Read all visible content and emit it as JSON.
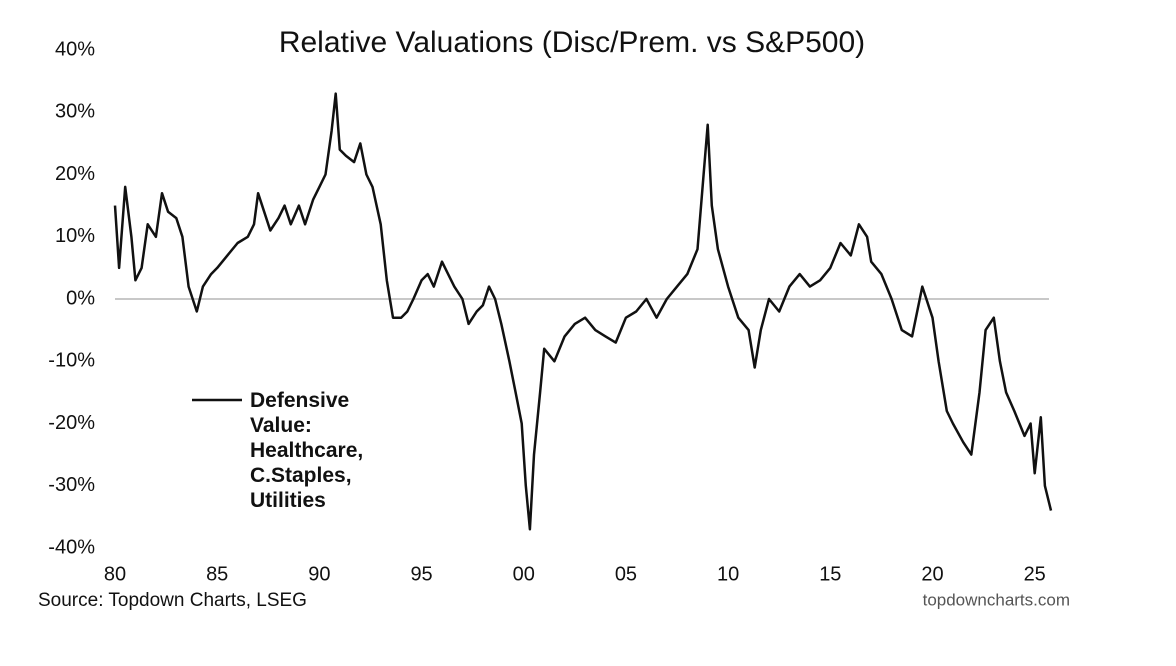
{
  "chart_data": {
    "type": "line",
    "title": "Relative Valuations (Disc/Prem. vs S&P500)",
    "source": "Source: Topdown Charts, LSEG",
    "watermark": "topdowncharts.com",
    "xlim": [
      1980,
      2025.7
    ],
    "ylim": [
      -40,
      40
    ],
    "xticks": [
      {
        "value": 1980,
        "label": "80"
      },
      {
        "value": 1985,
        "label": "85"
      },
      {
        "value": 1990,
        "label": "90"
      },
      {
        "value": 1995,
        "label": "95"
      },
      {
        "value": 2000,
        "label": "00"
      },
      {
        "value": 2005,
        "label": "05"
      },
      {
        "value": 2010,
        "label": "10"
      },
      {
        "value": 2015,
        "label": "15"
      },
      {
        "value": 2020,
        "label": "20"
      },
      {
        "value": 2025,
        "label": "25"
      }
    ],
    "yticks": [
      {
        "value": 40,
        "label": "40%"
      },
      {
        "value": 30,
        "label": "30%"
      },
      {
        "value": 20,
        "label": "20%"
      },
      {
        "value": 10,
        "label": "10%"
      },
      {
        "value": 0,
        "label": "0%"
      },
      {
        "value": -10,
        "label": "-10%"
      },
      {
        "value": -20,
        "label": "-20%"
      },
      {
        "value": -30,
        "label": "-30%"
      },
      {
        "value": -40,
        "label": "-40%"
      }
    ],
    "zero_line": true,
    "x": [
      1980.0,
      1980.2,
      1980.5,
      1980.8,
      1981.0,
      1981.3,
      1981.6,
      1982.0,
      1982.3,
      1982.6,
      1983.0,
      1983.3,
      1983.6,
      1984.0,
      1984.3,
      1984.7,
      1985.0,
      1985.5,
      1986.0,
      1986.5,
      1986.8,
      1987.0,
      1987.3,
      1987.6,
      1988.0,
      1988.3,
      1988.6,
      1989.0,
      1989.3,
      1989.7,
      1990.0,
      1990.3,
      1990.6,
      1990.8,
      1991.0,
      1991.3,
      1991.7,
      1992.0,
      1992.3,
      1992.6,
      1993.0,
      1993.3,
      1993.6,
      1994.0,
      1994.3,
      1994.6,
      1995.0,
      1995.3,
      1995.6,
      1996.0,
      1996.3,
      1996.6,
      1997.0,
      1997.3,
      1997.7,
      1998.0,
      1998.3,
      1998.6,
      1998.9,
      1999.3,
      1999.6,
      1999.9,
      2000.1,
      2000.3,
      2000.5,
      2000.8,
      2001.0,
      2001.5,
      2002.0,
      2002.5,
      2003.0,
      2003.5,
      2004.0,
      2004.5,
      2005.0,
      2005.5,
      2006.0,
      2006.5,
      2007.0,
      2007.5,
      2008.0,
      2008.5,
      2008.8,
      2009.0,
      2009.2,
      2009.5,
      2010.0,
      2010.5,
      2011.0,
      2011.3,
      2011.6,
      2012.0,
      2012.5,
      2013.0,
      2013.5,
      2014.0,
      2014.5,
      2015.0,
      2015.5,
      2016.0,
      2016.4,
      2016.8,
      2017.0,
      2017.5,
      2018.0,
      2018.5,
      2019.0,
      2019.5,
      2020.0,
      2020.3,
      2020.7,
      2021.0,
      2021.5,
      2021.9,
      2022.3,
      2022.6,
      2023.0,
      2023.3,
      2023.6,
      2024.0,
      2024.5,
      2024.8,
      2025.0,
      2025.3,
      2025.5,
      2025.8
    ],
    "series": [
      {
        "name": "Defensive Value: Healthcare, C.Staples, Utilities",
        "color": "#111111",
        "values": [
          15,
          5,
          18,
          10,
          3,
          5,
          12,
          10,
          17,
          14,
          13,
          10,
          2,
          -2,
          2,
          4,
          5,
          7,
          9,
          10,
          12,
          17,
          14,
          11,
          13,
          15,
          12,
          15,
          12,
          16,
          18,
          20,
          27,
          33,
          24,
          23,
          22,
          25,
          20,
          18,
          12,
          3,
          -3,
          -3,
          -2,
          0,
          3,
          4,
          2,
          6,
          4,
          2,
          0,
          -4,
          -2,
          -1,
          2,
          0,
          -4,
          -10,
          -15,
          -20,
          -30,
          -37,
          -25,
          -15,
          -8,
          -10,
          -6,
          -4,
          -3,
          -5,
          -6,
          -7,
          -3,
          -2,
          0,
          -3,
          0,
          2,
          4,
          8,
          20,
          28,
          15,
          8,
          2,
          -3,
          -5,
          -11,
          -5,
          0,
          -2,
          2,
          4,
          2,
          3,
          5,
          9,
          7,
          12,
          10,
          6,
          4,
          0,
          -5,
          -6,
          2,
          -3,
          -10,
          -18,
          -20,
          -23,
          -25,
          -15,
          -5,
          -3,
          -10,
          -15,
          -18,
          -22,
          -20,
          -28,
          -19,
          -30,
          -34
        ]
      }
    ]
  }
}
